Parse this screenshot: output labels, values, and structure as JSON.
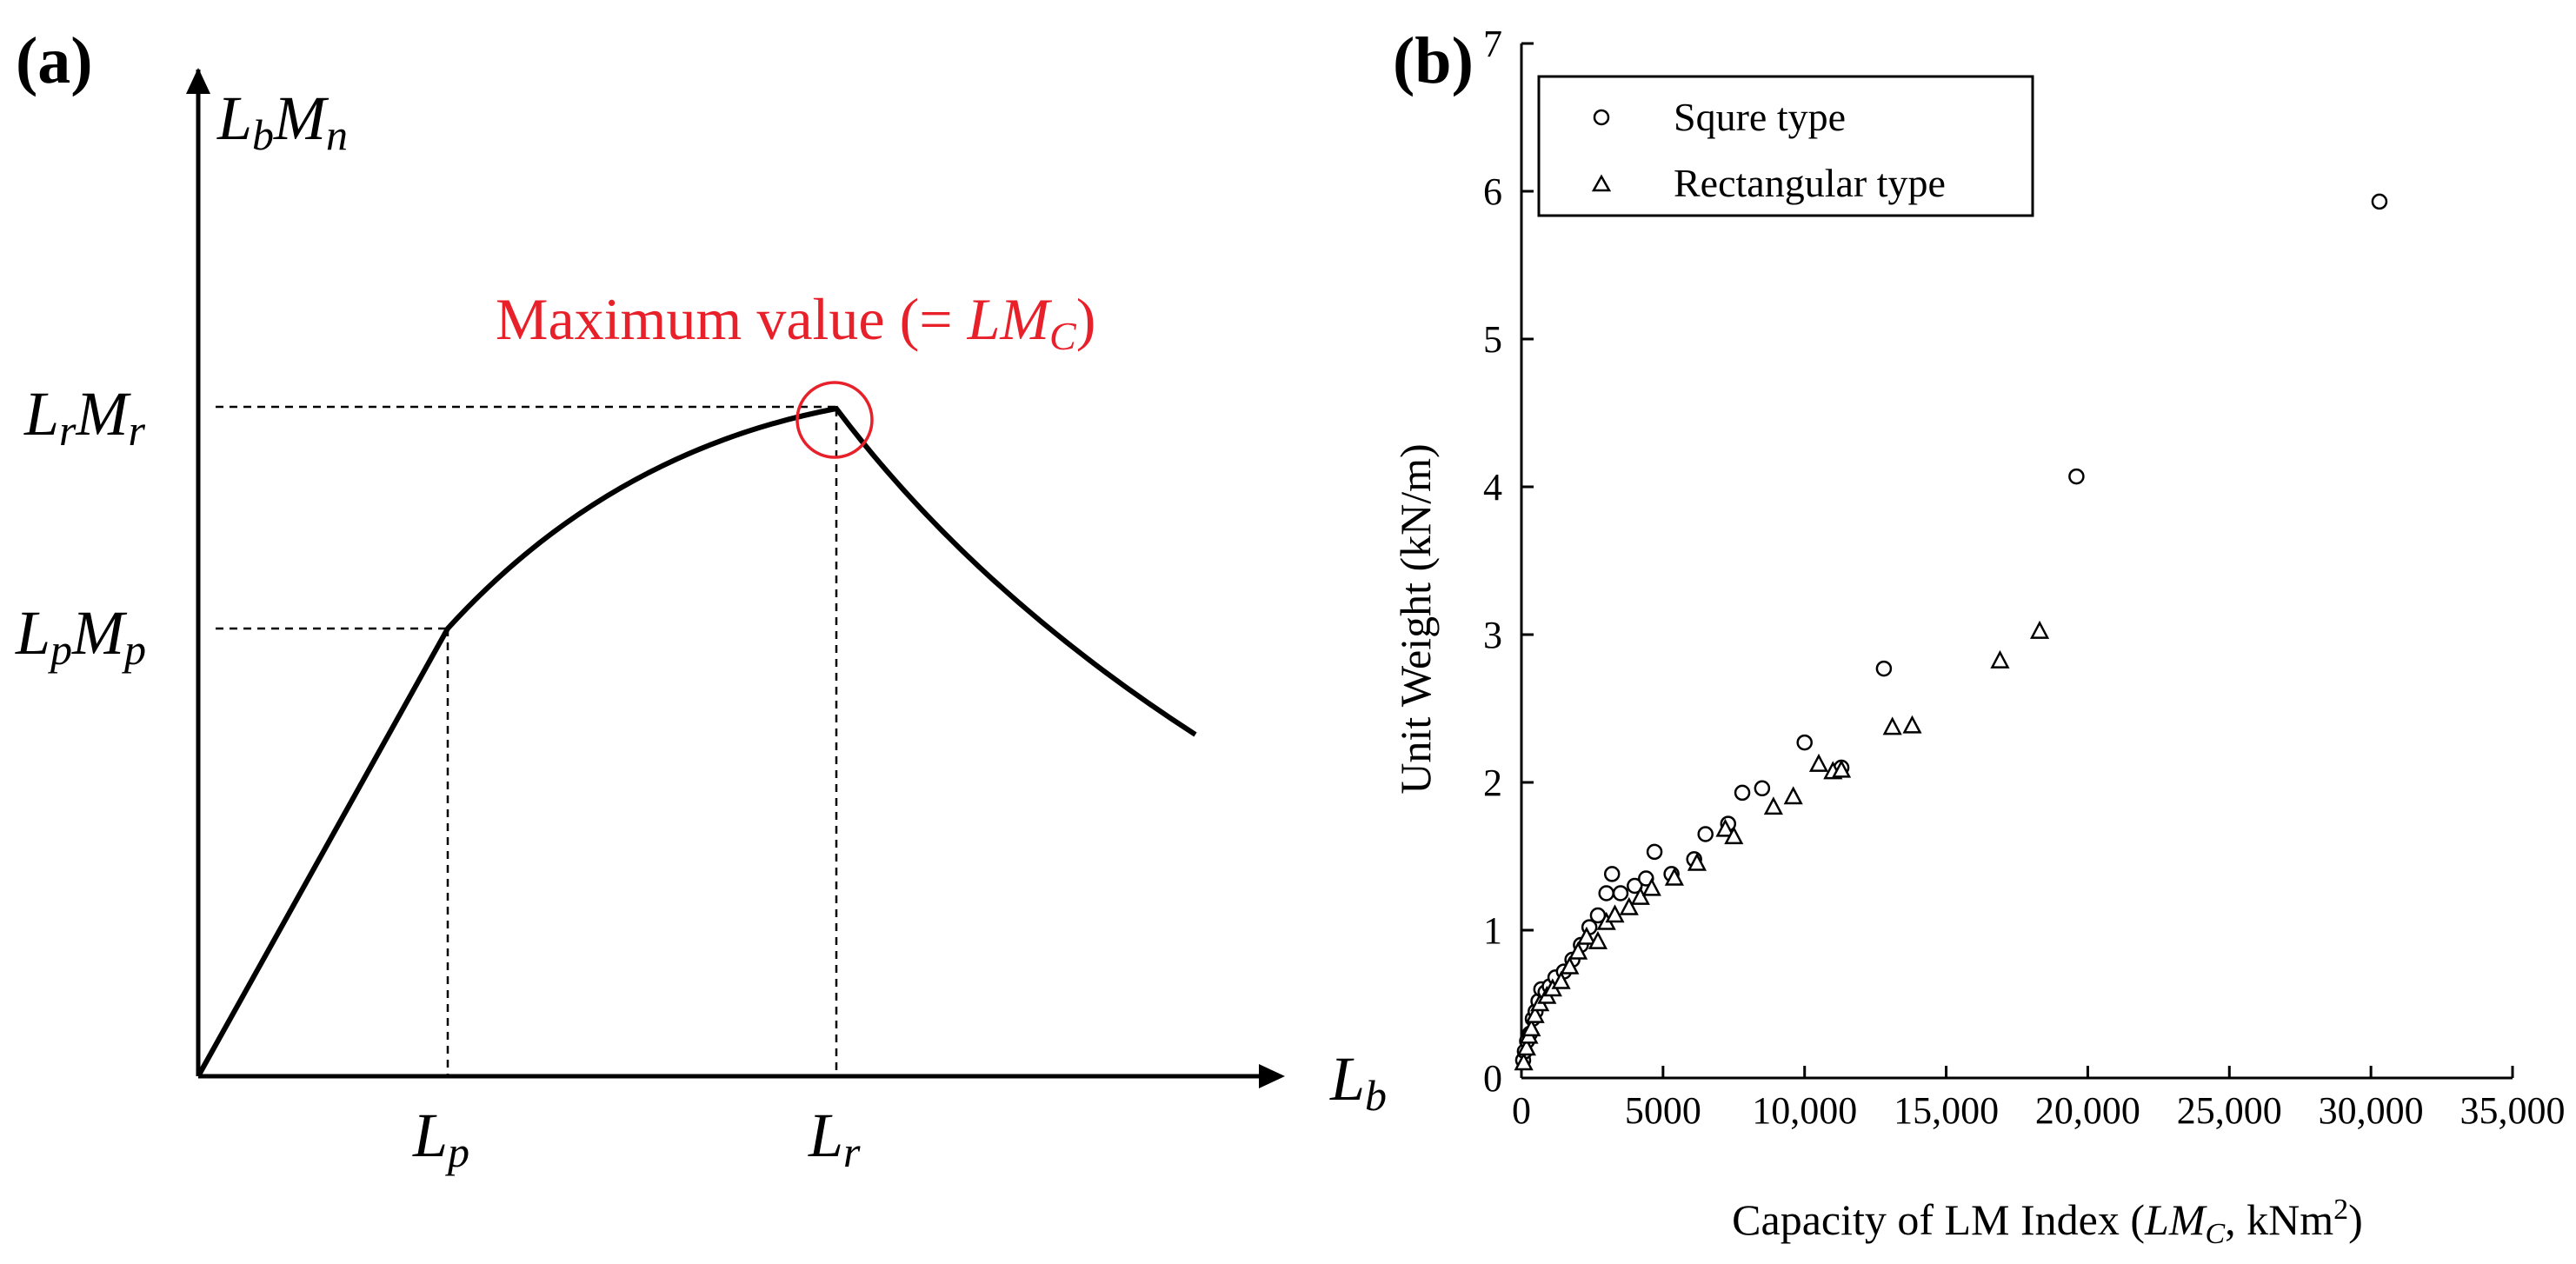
{
  "panel_a": {
    "label": "(a)",
    "y_axis_label": {
      "main": "L",
      "sub1": "b",
      "main2": "M",
      "sub2": "n"
    },
    "x_axis_label": {
      "main": "L",
      "sub": "b"
    },
    "level_rm": {
      "main": "L",
      "sub1": "r",
      "main2": "M",
      "sub2": "r"
    },
    "level_pm": {
      "main": "L",
      "sub1": "p",
      "main2": "M",
      "sub2": "p"
    },
    "tick_lp": {
      "main": "L",
      "sub": "p"
    },
    "tick_lr": {
      "main": "L",
      "sub": "r"
    },
    "annotation": {
      "prefix": "Maximum value (= ",
      "italic": "LM",
      "sub": "C",
      "suffix": ")"
    },
    "colors": {
      "annotation": "#e8202a",
      "curve": "#000000"
    }
  },
  "panel_b": {
    "label": "(b)"
  },
  "chart_data": {
    "type": "scatter",
    "title": "",
    "xlabel": {
      "prefix": "Capacity of LM Index (",
      "italic": "LM",
      "sub": "C",
      "mid": ", kNm",
      "sup": "2",
      "suffix": ")"
    },
    "ylabel": "Unit Weight (kN/m)",
    "xlim": [
      0,
      35000
    ],
    "ylim": [
      0,
      7
    ],
    "x_ticks": [
      0,
      5000,
      10000,
      15000,
      20000,
      25000,
      30000,
      35000
    ],
    "x_tick_labels": [
      "0",
      "5000",
      "10,000",
      "15,000",
      "20,000",
      "25,000",
      "30,000",
      "35,000"
    ],
    "y_ticks": [
      0,
      1,
      2,
      3,
      4,
      5,
      6,
      7
    ],
    "y_tick_labels": [
      "0",
      "1",
      "2",
      "3",
      "4",
      "5",
      "6",
      "7"
    ],
    "grid": false,
    "legend_position": "top-left",
    "series": [
      {
        "name": "Squre type",
        "marker": "circle",
        "points": [
          [
            60,
            0.12
          ],
          [
            120,
            0.18
          ],
          [
            200,
            0.25
          ],
          [
            300,
            0.3
          ],
          [
            400,
            0.4
          ],
          [
            500,
            0.45
          ],
          [
            600,
            0.52
          ],
          [
            700,
            0.6
          ],
          [
            850,
            0.58
          ],
          [
            1000,
            0.62
          ],
          [
            1200,
            0.68
          ],
          [
            1500,
            0.72
          ],
          [
            1800,
            0.8
          ],
          [
            2100,
            0.9
          ],
          [
            2400,
            1.02
          ],
          [
            2700,
            1.1
          ],
          [
            3000,
            1.25
          ],
          [
            3200,
            1.38
          ],
          [
            3500,
            1.25
          ],
          [
            4000,
            1.3
          ],
          [
            4400,
            1.35
          ],
          [
            4700,
            1.53
          ],
          [
            5300,
            1.38
          ],
          [
            6100,
            1.48
          ],
          [
            6500,
            1.65
          ],
          [
            7300,
            1.72
          ],
          [
            7800,
            1.93
          ],
          [
            8500,
            1.96
          ],
          [
            10000,
            2.27
          ],
          [
            11300,
            2.1
          ],
          [
            12800,
            2.77
          ],
          [
            19600,
            4.07
          ],
          [
            30300,
            5.93
          ]
        ]
      },
      {
        "name": "Rectangular type",
        "marker": "triangle",
        "points": [
          [
            80,
            0.1
          ],
          [
            180,
            0.2
          ],
          [
            260,
            0.28
          ],
          [
            350,
            0.33
          ],
          [
            480,
            0.42
          ],
          [
            650,
            0.5
          ],
          [
            900,
            0.55
          ],
          [
            1100,
            0.6
          ],
          [
            1400,
            0.65
          ],
          [
            1700,
            0.75
          ],
          [
            2000,
            0.85
          ],
          [
            2300,
            0.95
          ],
          [
            2700,
            0.92
          ],
          [
            3000,
            1.05
          ],
          [
            3300,
            1.1
          ],
          [
            3800,
            1.15
          ],
          [
            4200,
            1.22
          ],
          [
            4600,
            1.28
          ],
          [
            5400,
            1.35
          ],
          [
            6200,
            1.45
          ],
          [
            7200,
            1.68
          ],
          [
            7500,
            1.63
          ],
          [
            8900,
            1.83
          ],
          [
            9600,
            1.9
          ],
          [
            10500,
            2.12
          ],
          [
            11000,
            2.07
          ],
          [
            11300,
            2.08
          ],
          [
            13100,
            2.37
          ],
          [
            13800,
            2.38
          ],
          [
            16900,
            2.82
          ],
          [
            18300,
            3.02
          ]
        ]
      }
    ]
  }
}
